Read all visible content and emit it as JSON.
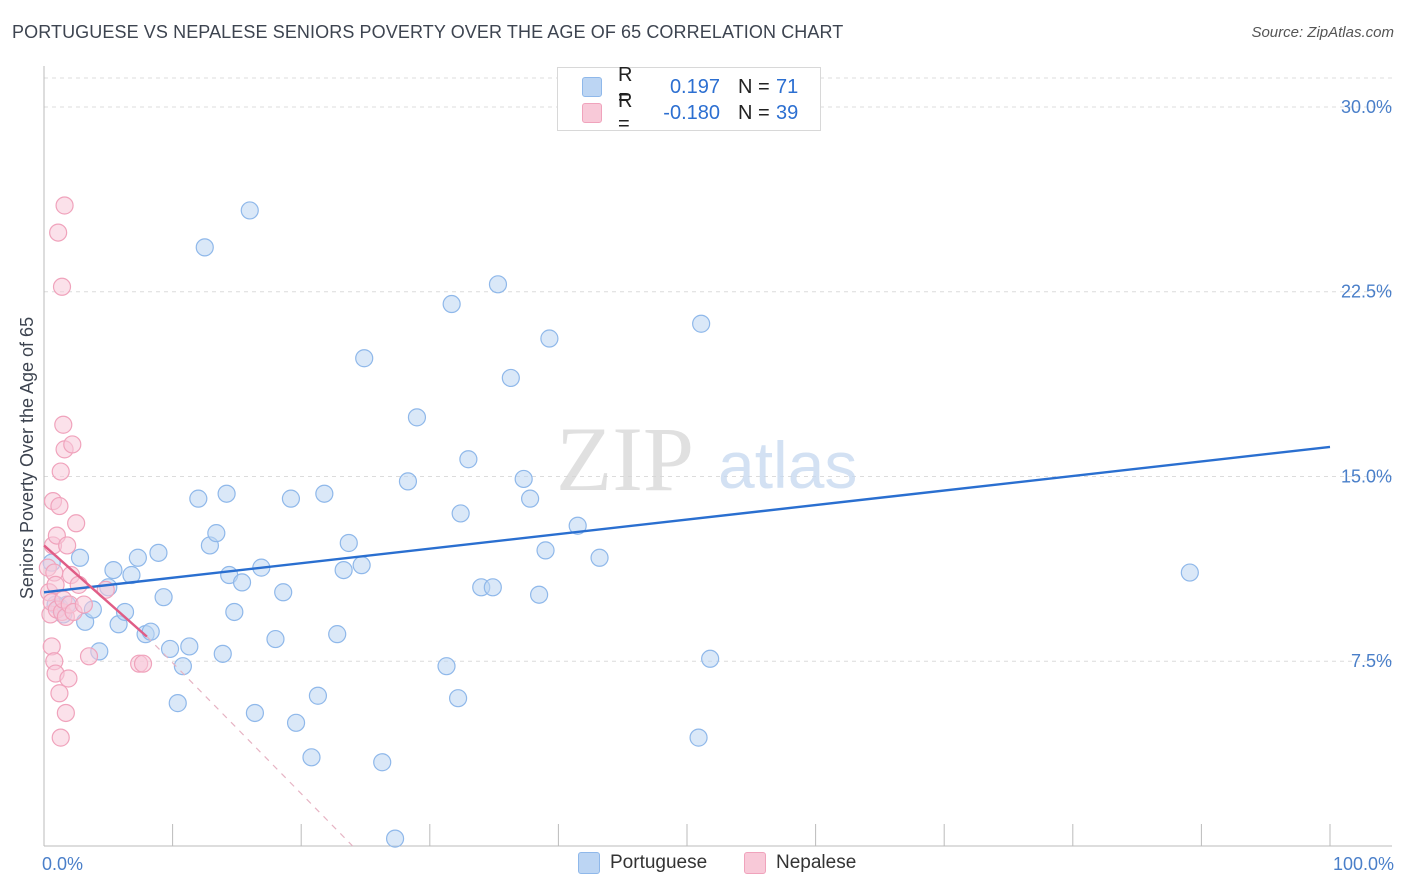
{
  "header": {
    "title": "PORTUGUESE VS NEPALESE SENIORS POVERTY OVER THE AGE OF 65 CORRELATION CHART",
    "source": "Source: ZipAtlas.com"
  },
  "watermark": {
    "zip": "ZIP",
    "atlas": "atlas"
  },
  "legend": {
    "rows": [
      {
        "r_label": "R =",
        "r_value": "0.197",
        "n_label": "N =",
        "n_value": "71"
      },
      {
        "r_label": "R =",
        "r_value": "-0.180",
        "n_label": "N =",
        "n_value": "39"
      }
    ]
  },
  "chart_data": {
    "type": "scatter",
    "title": "PORTUGUESE VS NEPALESE SENIORS POVERTY OVER THE AGE OF 65 CORRELATION CHART",
    "xlabel": "",
    "ylabel": "Seniors Poverty Over the Age of 65",
    "xlim": [
      0,
      100
    ],
    "ylim": [
      0,
      31.5
    ],
    "x_tick_labels": [
      "0.0%",
      "100.0%"
    ],
    "y_ticks": [
      7.5,
      15.0,
      22.5,
      30.0
    ],
    "y_tick_labels": [
      "7.5%",
      "15.0%",
      "22.5%",
      "30.0%"
    ],
    "grid": true,
    "legend_position": "top-center",
    "series": [
      {
        "name": "Portuguese",
        "color": "#8fb8ea",
        "fill": "#bcd5f3",
        "line_color": "#2a6fd0",
        "r": 0.197,
        "n": 71,
        "trend": {
          "x": [
            0,
            100
          ],
          "y": [
            10.3,
            16.2
          ]
        },
        "points": [
          [
            0.6,
            11.5
          ],
          [
            1.2,
            9.7
          ],
          [
            1.5,
            9.4
          ],
          [
            1.8,
            9.8
          ],
          [
            2.8,
            11.7
          ],
          [
            3.2,
            9.1
          ],
          [
            3.8,
            9.6
          ],
          [
            4.3,
            7.9
          ],
          [
            5.0,
            10.5
          ],
          [
            5.4,
            11.2
          ],
          [
            5.8,
            9.0
          ],
          [
            6.3,
            9.5
          ],
          [
            6.8,
            11.0
          ],
          [
            7.3,
            11.7
          ],
          [
            7.9,
            8.6
          ],
          [
            8.3,
            8.7
          ],
          [
            8.9,
            11.9
          ],
          [
            9.3,
            10.1
          ],
          [
            9.8,
            8.0
          ],
          [
            10.4,
            5.8
          ],
          [
            10.8,
            7.3
          ],
          [
            11.3,
            8.1
          ],
          [
            12.0,
            14.1
          ],
          [
            12.5,
            24.3
          ],
          [
            12.9,
            12.2
          ],
          [
            13.4,
            12.7
          ],
          [
            13.9,
            7.8
          ],
          [
            14.4,
            11.0
          ],
          [
            14.8,
            9.5
          ],
          [
            15.4,
            10.7
          ],
          [
            16.0,
            25.8
          ],
          [
            16.4,
            5.4
          ],
          [
            16.9,
            11.3
          ],
          [
            18.0,
            8.4
          ],
          [
            18.6,
            10.3
          ],
          [
            19.2,
            14.1
          ],
          [
            19.6,
            5.0
          ],
          [
            20.8,
            3.6
          ],
          [
            21.3,
            6.1
          ],
          [
            21.8,
            14.3
          ],
          [
            22.8,
            8.6
          ],
          [
            23.3,
            11.2
          ],
          [
            23.7,
            12.3
          ],
          [
            24.7,
            11.4
          ],
          [
            24.9,
            19.8
          ],
          [
            26.3,
            3.4
          ],
          [
            27.3,
            0.3
          ],
          [
            28.3,
            14.8
          ],
          [
            29.0,
            17.4
          ],
          [
            31.3,
            7.3
          ],
          [
            31.7,
            22.0
          ],
          [
            32.2,
            6.0
          ],
          [
            32.4,
            13.5
          ],
          [
            33.0,
            15.7
          ],
          [
            34.0,
            10.5
          ],
          [
            34.9,
            10.5
          ],
          [
            35.3,
            22.8
          ],
          [
            36.3,
            19.0
          ],
          [
            37.3,
            14.9
          ],
          [
            37.8,
            14.1
          ],
          [
            38.5,
            10.2
          ],
          [
            39.0,
            12.0
          ],
          [
            39.3,
            20.6
          ],
          [
            41.5,
            13.0
          ],
          [
            43.2,
            11.7
          ],
          [
            50.9,
            4.4
          ],
          [
            51.1,
            21.2
          ],
          [
            51.8,
            7.6
          ],
          [
            89.1,
            11.1
          ],
          [
            14.2,
            14.3
          ],
          [
            0.9,
            9.8
          ]
        ]
      },
      {
        "name": "Nepalese",
        "color": "#f0a3bc",
        "fill": "#f8c9d8",
        "line_color": "#e05d86",
        "r": -0.18,
        "n": 39,
        "trend": {
          "x": [
            0,
            8.0
          ],
          "y": [
            12.2,
            8.5
          ]
        },
        "trend_dashed_extension": {
          "x": [
            8.0,
            24.0
          ],
          "y": [
            8.5,
            0.0
          ]
        },
        "points": [
          [
            0.3,
            11.3
          ],
          [
            0.4,
            10.3
          ],
          [
            0.5,
            9.4
          ],
          [
            0.6,
            9.9
          ],
          [
            0.6,
            8.1
          ],
          [
            0.7,
            14.0
          ],
          [
            0.7,
            12.2
          ],
          [
            0.8,
            7.5
          ],
          [
            0.8,
            11.1
          ],
          [
            0.9,
            10.6
          ],
          [
            0.9,
            7.0
          ],
          [
            1.0,
            12.6
          ],
          [
            1.0,
            9.6
          ],
          [
            1.1,
            24.9
          ],
          [
            1.2,
            13.8
          ],
          [
            1.2,
            6.2
          ],
          [
            1.3,
            4.4
          ],
          [
            1.3,
            15.2
          ],
          [
            1.4,
            9.5
          ],
          [
            1.4,
            22.7
          ],
          [
            1.5,
            10.0
          ],
          [
            1.5,
            17.1
          ],
          [
            1.6,
            26.0
          ],
          [
            1.6,
            16.1
          ],
          [
            1.7,
            5.4
          ],
          [
            1.7,
            9.3
          ],
          [
            1.8,
            12.2
          ],
          [
            1.9,
            6.8
          ],
          [
            2.0,
            9.8
          ],
          [
            2.1,
            11.0
          ],
          [
            2.2,
            16.3
          ],
          [
            2.3,
            9.5
          ],
          [
            2.5,
            13.1
          ],
          [
            2.7,
            10.6
          ],
          [
            3.1,
            9.8
          ],
          [
            3.5,
            7.7
          ],
          [
            4.8,
            10.4
          ],
          [
            7.4,
            7.4
          ],
          [
            7.7,
            7.4
          ]
        ]
      }
    ]
  }
}
